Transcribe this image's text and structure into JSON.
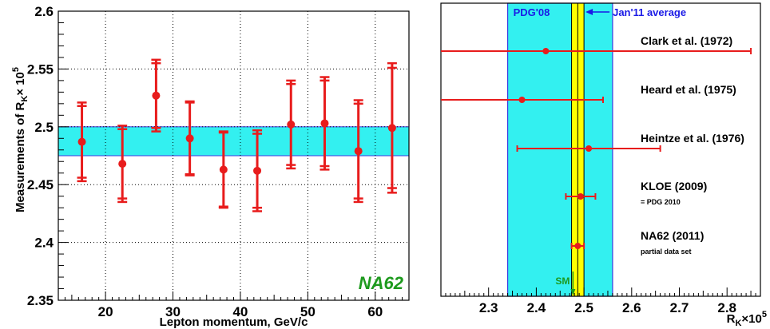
{
  "colors": {
    "marker": "#e81c1c",
    "band_fill": "#33f0f0",
    "band_edge": "#3a3ae0",
    "average": "#ffff00",
    "annotation_blue": "#1a1ae6",
    "sm_green": "#1e9a1e"
  },
  "chart_data": [
    {
      "type": "scatter",
      "title": "",
      "xlabel": "Lepton momentum, GeV/c",
      "ylabel": "Measurements of R",
      "ylabel_sub": "K",
      "ylabel_tail": "× 10",
      "ylabel_sup": "5",
      "xlim": [
        13,
        65
      ],
      "ylim": [
        2.35,
        2.6
      ],
      "x_ticks": [
        20,
        30,
        40,
        50,
        60
      ],
      "y_ticks": [
        2.35,
        2.4,
        2.45,
        2.5,
        2.55,
        2.6
      ],
      "y_tick_labels": [
        "2.35",
        "2.4",
        "2.45",
        "2.5",
        "2.55",
        "2.6"
      ],
      "grid": true,
      "band": [
        2.475,
        2.5
      ],
      "x": [
        16.5,
        22.5,
        27.5,
        32.5,
        37.5,
        42.5,
        47.5,
        52.5,
        57.5,
        62.5
      ],
      "y": [
        2.487,
        2.468,
        2.527,
        2.49,
        2.463,
        2.462,
        2.502,
        2.503,
        2.479,
        2.499
      ],
      "err_stat": [
        0.031,
        0.03,
        0.028,
        0.031,
        0.032,
        0.032,
        0.035,
        0.037,
        0.041,
        0.052
      ],
      "err_tot": [
        0.034,
        0.033,
        0.031,
        0.032,
        0.033,
        0.035,
        0.038,
        0.04,
        0.044,
        0.056
      ],
      "annotation": "NA62"
    },
    {
      "type": "scatter",
      "title": "",
      "xlabel": "R",
      "xlabel_sub": "K",
      "xlabel_tail": "×10",
      "xlabel_sup": "5",
      "xlim": [
        2.2,
        2.87
      ],
      "x_ticks": [
        2.3,
        2.4,
        2.5,
        2.6,
        2.7,
        2.8
      ],
      "x_tick_labels": [
        "2.3",
        "2.4",
        "2.5",
        "2.6",
        "2.7",
        "2.8"
      ],
      "pdg_band": [
        2.34,
        2.56
      ],
      "pdg_label": "PDG'08",
      "average": 2.487,
      "average_halfwidth": 0.013,
      "average_label": "Jan'11 average",
      "sm_value": 2.477,
      "sm_label": "SM",
      "points": [
        {
          "label": "Clark et al. (1972)",
          "note": "",
          "value": 2.42,
          "lo": 2.2,
          "hi": 2.85
        },
        {
          "label": "Heard et al. (1975)",
          "note": "",
          "value": 2.37,
          "lo": 2.2,
          "hi": 2.54
        },
        {
          "label": "Heintze et al. (1976)",
          "note": "",
          "value": 2.51,
          "lo": 2.36,
          "hi": 2.66
        },
        {
          "label": "KLOE (2009)",
          "note": "= PDG 2010",
          "value": 2.493,
          "lo": 2.462,
          "hi": 2.524
        },
        {
          "label": "NA62 (2011)",
          "note": "partial data set",
          "value": 2.487,
          "lo": 2.474,
          "hi": 2.5
        }
      ]
    }
  ]
}
